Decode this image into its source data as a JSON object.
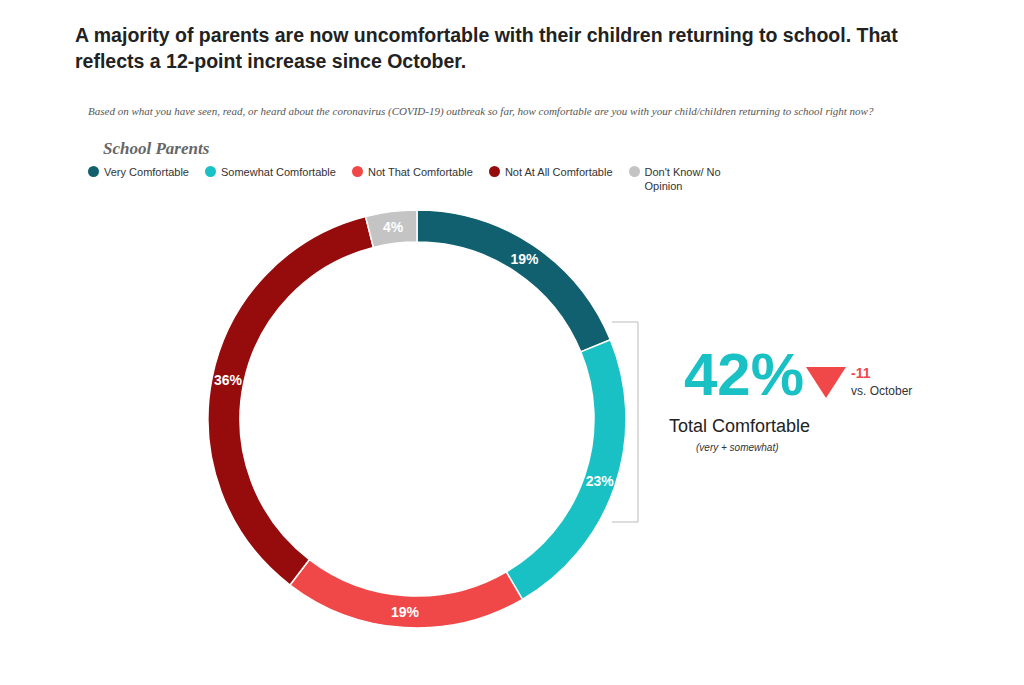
{
  "chart_data": {
    "type": "pie",
    "title": "A majority of parents are now uncomfortable with their children returning to school. That reflects a 12-point increase since October.",
    "subtitle": "Based on what you have seen, read, or heard about the coronavirus (COVID-19) outbreak so far, how comfortable are you with your child/children returning to school right now?",
    "group_label": "School Parents",
    "categories": [
      "Very Comfortable",
      "Somewhat Comfortable",
      "Not That Comfortable",
      "Not At All Comfortable",
      "Don't Know/ No Opinion"
    ],
    "values": [
      19,
      23,
      19,
      36,
      4
    ],
    "value_labels": [
      "19%",
      "23%",
      "19%",
      "36%",
      "4%"
    ],
    "colors": [
      "#10606f",
      "#19c0c4",
      "#f04848",
      "#960c0c",
      "#c4c4c4"
    ],
    "data_labels": true,
    "legend": "top",
    "annotations": {
      "total": "42%",
      "change": "-11",
      "change_note": "vs. October",
      "total_label": "Total Comfortable",
      "total_note": "(very + somewhat)"
    }
  }
}
